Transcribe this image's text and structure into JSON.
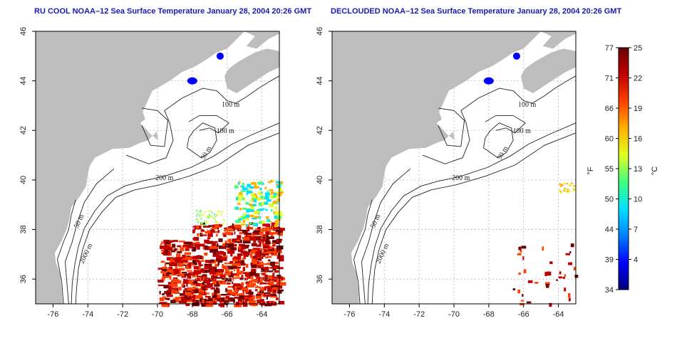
{
  "maps": [
    {
      "id": "left",
      "title": "RU COOL NOAA–12 Sea Surface Temperature January 28, 2004 20:26 GMT",
      "lon_ticks": [
        "-76",
        "-74",
        "-72",
        "-70",
        "-68",
        "-66",
        "-64"
      ],
      "lat_ticks": [
        "46",
        "44",
        "42",
        "40",
        "38",
        "36"
      ],
      "contour_labels": [
        "100 m",
        "100 m",
        "50 m",
        "200 m",
        "50 m",
        "2000 m"
      ]
    },
    {
      "id": "right",
      "title": "DECLOUDED NOAA–12 Sea Surface Temperature January 28, 2004 20:26 GMT",
      "lon_ticks": [
        "-76",
        "-74",
        "-72",
        "-70",
        "-68",
        "-66",
        "-64"
      ],
      "lat_ticks": [
        "46",
        "44",
        "42",
        "40",
        "38",
        "36"
      ],
      "contour_labels": [
        "100 m",
        "100 m",
        "50 m",
        "200 m",
        "50 m",
        "2000 m"
      ]
    }
  ],
  "colorbar": {
    "fahrenheit_unit": "°F",
    "celsius_unit": "°C",
    "fahrenheit_ticks": [
      "77",
      "71",
      "66",
      "60",
      "55",
      "50",
      "44",
      "39",
      "34"
    ],
    "celsius_ticks": [
      "25",
      "22",
      "19",
      "16",
      "13",
      "10",
      "7",
      "4"
    ],
    "colors": [
      "#00007a",
      "#0000ff",
      "#0080ff",
      "#00e0ff",
      "#40ff80",
      "#e0ff20",
      "#ffb000",
      "#ff4000",
      "#c00000",
      "#6a0000"
    ]
  },
  "map_extent": {
    "lon_range": [
      -77,
      -63
    ],
    "lat_range": [
      35,
      46
    ]
  }
}
